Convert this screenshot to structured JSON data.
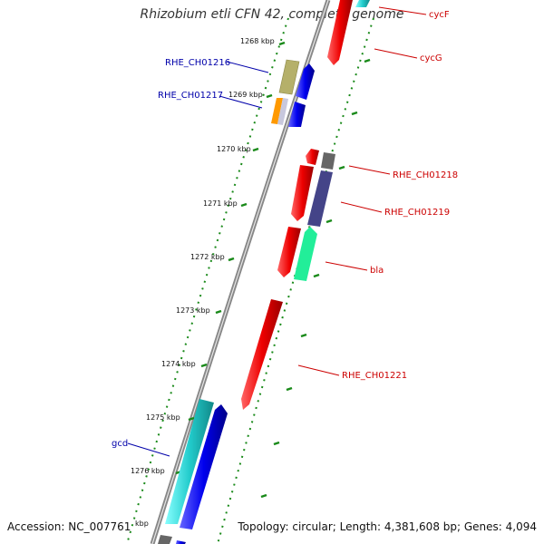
{
  "title": "Rhizobium etli CFN 42, complete genome",
  "footer": {
    "accession": "Accession: NC_007761",
    "topology": "Topology: circular; Length: 4,381,608 bp; Genes: 4,094"
  },
  "ticks": [
    "1268 kbp",
    "1269 kbp",
    "1270 kbp",
    "1271 kbp",
    "1272 kbp",
    "1273 kbp",
    "1274 kbp",
    "1275 kbp",
    "1276 kbp",
    "kbp"
  ],
  "genes": {
    "cycF": "cycF",
    "cycG": "cycG",
    "RHE_CH01216": "RHE_CH01216",
    "RHE_CH01217": "RHE_CH01217",
    "RHE_CH01218": "RHE_CH01218",
    "RHE_CH01219": "RHE_CH01219",
    "bla": "bla",
    "RHE_CH01221": "RHE_CH01221",
    "gcd": "gcd"
  },
  "colors": {
    "backbone": "#8a8a8a",
    "tick": "#1a8a1a",
    "red": "#ee0000",
    "blue": "#0000ee",
    "cyan": "#22cccc",
    "olive": "#b5b06a",
    "orange": "#ff9900",
    "slate": "#444488",
    "gray": "#666666",
    "mint": "#22ee99"
  }
}
